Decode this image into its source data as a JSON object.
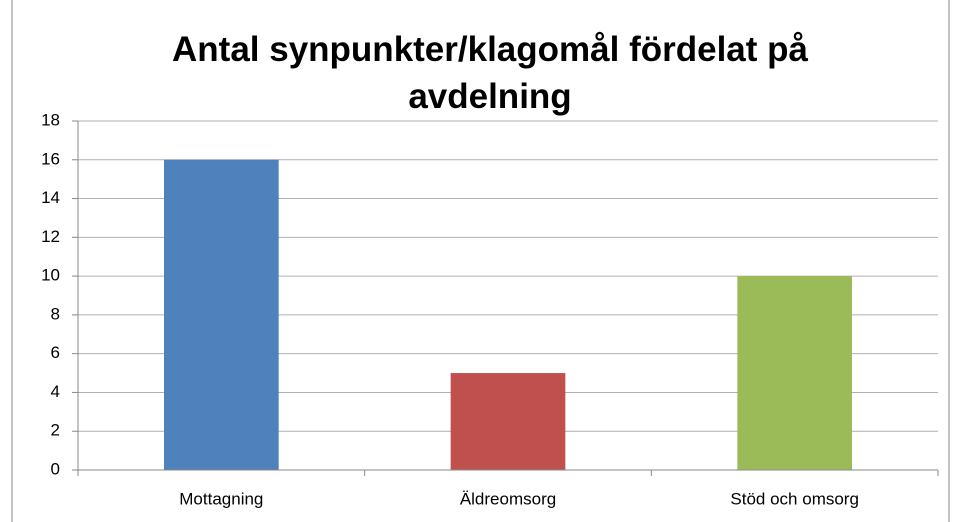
{
  "chart_data": {
    "type": "bar",
    "title": "Antal synpunkter/klagomål fördelat på avdelning",
    "categories": [
      "Mottagning",
      "Äldreomsorg",
      "Stöd och omsorg"
    ],
    "values": [
      16,
      5,
      10
    ],
    "colors": [
      "#4f81bd",
      "#c0504d",
      "#9bbb59"
    ],
    "ylim": [
      0,
      18
    ],
    "yticks": [
      0,
      2,
      4,
      6,
      8,
      10,
      12,
      14,
      16,
      18
    ],
    "grid": true
  }
}
